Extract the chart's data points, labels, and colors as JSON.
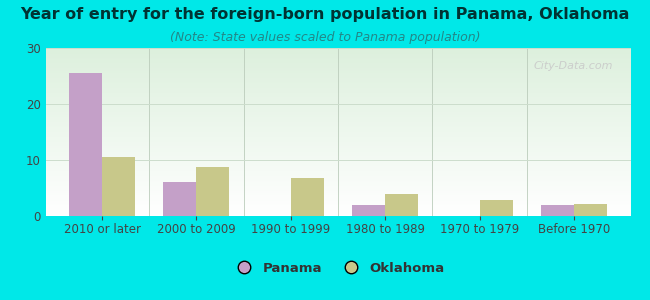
{
  "title": "Year of entry for the foreign-born population in Panama, Oklahoma",
  "subtitle": "(Note: State values scaled to Panama population)",
  "categories": [
    "2010 or later",
    "2000 to 2009",
    "1990 to 1999",
    "1980 to 1989",
    "1970 to 1979",
    "Before 1970"
  ],
  "panama_values": [
    25.5,
    6.0,
    0,
    2.0,
    0,
    2.0
  ],
  "oklahoma_values": [
    10.5,
    8.7,
    6.7,
    4.0,
    2.8,
    2.2
  ],
  "panama_color": "#c4a0c8",
  "oklahoma_color": "#c8c88a",
  "background_color": "#00e8e8",
  "plot_bg_top": "#ddf0dd",
  "plot_bg_bottom": "#ffffff",
  "ylim": [
    0,
    30
  ],
  "yticks": [
    0,
    10,
    20,
    30
  ],
  "bar_width": 0.35,
  "title_fontsize": 11.5,
  "subtitle_fontsize": 9,
  "tick_fontsize": 8.5,
  "legend_fontsize": 9.5,
  "watermark_text": "City-Data.com",
  "watermark_color": "#c8c8c8"
}
